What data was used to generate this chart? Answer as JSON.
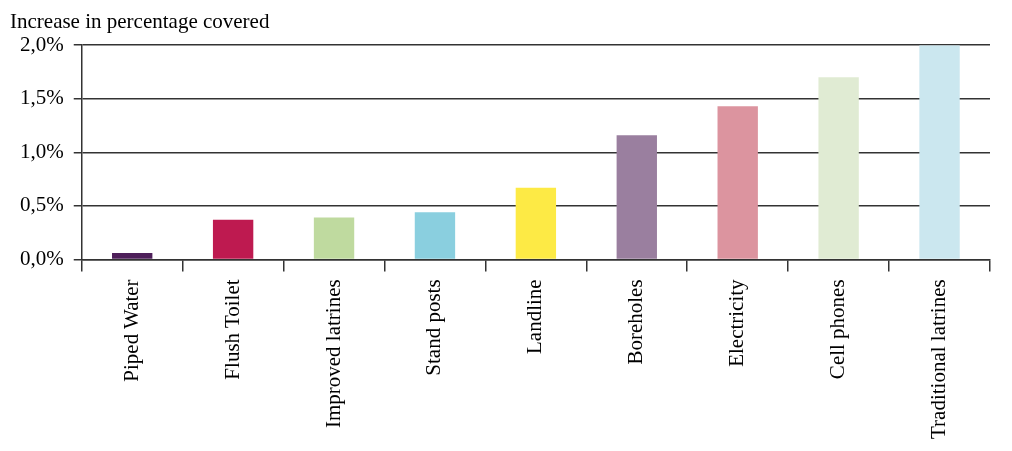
{
  "chart_data": {
    "type": "bar",
    "title": "Increase in percentage covered",
    "categories": [
      "Piped Water",
      "Flush Toilet",
      "Improved latrines",
      "Stand posts",
      "Landline",
      "Boreholes",
      "Electricity",
      "Cell phones",
      "Traditional latrines"
    ],
    "values": [
      0.06,
      0.37,
      0.39,
      0.44,
      0.67,
      1.16,
      1.43,
      1.7,
      2.0
    ],
    "colors": [
      "#4e1f5a",
      "#be1a50",
      "#bfda9f",
      "#8acfdf",
      "#fdea45",
      "#9a7f9f",
      "#dc949f",
      "#e0ebd3",
      "#cbe7ef"
    ],
    "ylim": [
      0,
      2.0
    ],
    "yticks": [
      {
        "value": 0,
        "label": "0,0%"
      },
      {
        "value": 0.5,
        "label": "0,5%"
      },
      {
        "value": 1.0,
        "label": "1,0%"
      },
      {
        "value": 1.5,
        "label": "1,5%"
      },
      {
        "value": 2.0,
        "label": "2,0%"
      }
    ],
    "grid": "y"
  }
}
